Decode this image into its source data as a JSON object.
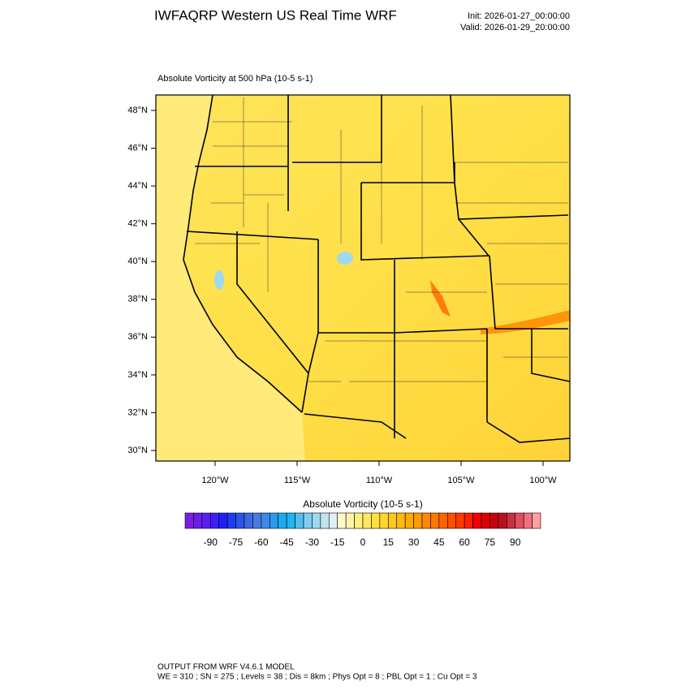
{
  "header": {
    "title": "IWFAQRP Western US Real Time WRF",
    "init": "Init: 2026-01-27_00:00:00",
    "valid": "Valid: 2026-01-29_20:00:00"
  },
  "map": {
    "subtitle": "Absolute Vorticity at 500 hPa   (10-5 s-1)",
    "lat_ticks": [
      {
        "value": 48,
        "label": "48°N"
      },
      {
        "value": 46,
        "label": "46°N"
      },
      {
        "value": 44,
        "label": "44°N"
      },
      {
        "value": 42,
        "label": "42°N"
      },
      {
        "value": 40,
        "label": "40°N"
      },
      {
        "value": 38,
        "label": "38°N"
      },
      {
        "value": 36,
        "label": "36°N"
      },
      {
        "value": 34,
        "label": "34°N"
      },
      {
        "value": 32,
        "label": "32°N"
      },
      {
        "value": 30,
        "label": "30°N"
      }
    ],
    "lon_ticks": [
      {
        "value": -120,
        "label": "120°W"
      },
      {
        "value": -115,
        "label": "115°W"
      },
      {
        "value": -110,
        "label": "110°W"
      },
      {
        "value": -105,
        "label": "105°W"
      },
      {
        "value": -100,
        "label": "100°W"
      }
    ]
  },
  "colorbar": {
    "title": "Absolute Vorticity  (10-5 s-1)",
    "labels": [
      -90,
      -75,
      -60,
      -45,
      -30,
      -15,
      0,
      15,
      30,
      45,
      60,
      75,
      90
    ],
    "colors": [
      "#7a1fe0",
      "#6a1ee8",
      "#5a1ef0",
      "#3f1ff5",
      "#2020f5",
      "#1e3cf0",
      "#2a55e8",
      "#3a6ae0",
      "#4a7ae0",
      "#3a8ae8",
      "#2a9aee",
      "#1aaaf0",
      "#20b4f0",
      "#50bff0",
      "#80cdf0",
      "#a0d8f0",
      "#c0e4f2",
      "#dff0f5",
      "#fffacc",
      "#fff5a8",
      "#ffef80",
      "#ffe860",
      "#ffe040",
      "#ffd530",
      "#ffc820",
      "#ffba10",
      "#ffaa00",
      "#ff9a00",
      "#ff8a00",
      "#ff7800",
      "#ff6400",
      "#ff5000",
      "#ff3800",
      "#ff2000",
      "#f00000",
      "#dd0000",
      "#c80010",
      "#b81020",
      "#c83040",
      "#e05060",
      "#f07080",
      "#ffa0a0"
    ]
  },
  "footer": {
    "line1": "OUTPUT FROM WRF V4.6.1 MODEL",
    "line2": "WE = 310 ; SN = 275 ; Levels = 38 ; Dis = 8km ; Phys Opt = 8 ; PBL Opt = 1 ; Cu Opt = 3"
  }
}
